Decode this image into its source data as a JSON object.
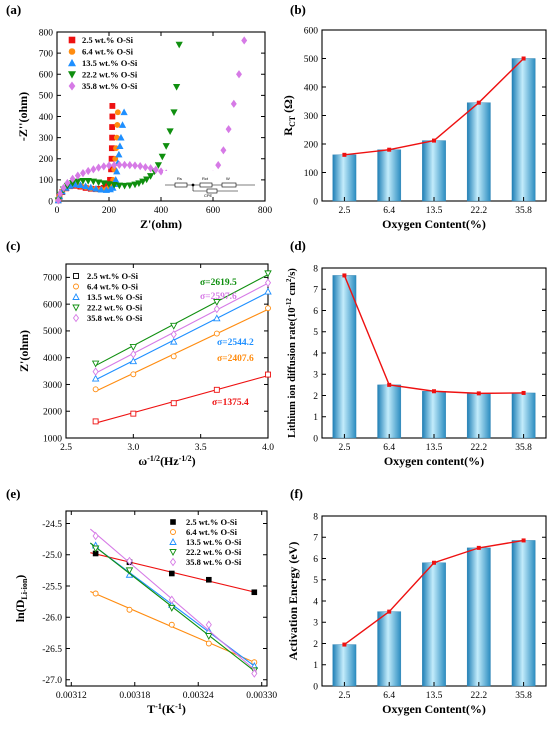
{
  "colors": {
    "s25": "#ee1111",
    "s64": "#ff8c10",
    "s135": "#1e8fff",
    "s222": "#0f8f0f",
    "s358": "#d67ae6",
    "bar_dark": "#2b8cc0",
    "bar_light": "#b8e6f8",
    "line": "#ee1111"
  },
  "panels": [
    {
      "label": "(a)",
      "chart_data": {
        "type": "scatter",
        "xlabel": "Z'(ohm)",
        "ylabel": "-Z''(ohm)",
        "xlim": [
          0,
          800
        ],
        "ylim": [
          0,
          800
        ],
        "xticks": [
          0,
          200,
          400,
          600,
          800
        ],
        "yticks": [
          0,
          100,
          200,
          300,
          400,
          500,
          600,
          700,
          800
        ],
        "legend_position": "top-left",
        "inset_labels": [
          "Rs",
          "Rct",
          "CPE",
          "W"
        ],
        "series": [
          {
            "name": "2.5 wt.% O-Si",
            "marker": "square",
            "color_key": "s25",
            "x": [
              5,
              10,
              20,
              35,
              50,
              70,
              90,
              110,
              130,
              150,
              165,
              180,
              190,
              198,
              204,
              208,
              210,
              211,
              212,
              212,
              213,
              213
            ],
            "y": [
              3,
              20,
              42,
              60,
              70,
              72,
              68,
              62,
              58,
              56,
              58,
              62,
              68,
              80,
              100,
              150,
              200,
              250,
              300,
              350,
              400,
              450
            ]
          },
          {
            "name": "6.4 wt.% O-Si",
            "marker": "circle",
            "color_key": "s64",
            "x": [
              5,
              10,
              20,
              35,
              50,
              70,
              90,
              110,
              130,
              150,
              170,
              190,
              200,
              210,
              216,
              220,
              224,
              227,
              230,
              232,
              234
            ],
            "y": [
              3,
              22,
              45,
              62,
              72,
              76,
              72,
              66,
              60,
              56,
              55,
              56,
              62,
              75,
              100,
              150,
              200,
              250,
              300,
              360,
              420
            ]
          },
          {
            "name": "13.5 wt.% O-Si",
            "marker": "triangle-up",
            "color_key": "s135",
            "x": [
              5,
              10,
              20,
              35,
              50,
              70,
              90,
              110,
              130,
              150,
              170,
              190,
              205,
              215,
              222,
              226,
              230,
              234,
              238,
              242,
              246,
              252,
              258
            ],
            "y": [
              3,
              22,
              45,
              62,
              72,
              78,
              75,
              70,
              64,
              58,
              54,
              52,
              55,
              62,
              80,
              100,
              140,
              180,
              220,
              260,
              300,
              360,
              420
            ]
          },
          {
            "name": "22.2 wt.% O-Si",
            "marker": "triangle-down",
            "color_key": "s222",
            "x": [
              5,
              12,
              25,
              40,
              60,
              80,
              100,
              120,
              140,
              160,
              180,
              200,
              220,
              240,
              260,
              280,
              300,
              315,
              330,
              345,
              360,
              375,
              390,
              405,
              420,
              435,
              450,
              460,
              470
            ],
            "y": [
              3,
              30,
              55,
              72,
              85,
              92,
              95,
              95,
              92,
              88,
              84,
              80,
              76,
              73,
              72,
              74,
              78,
              84,
              92,
              102,
              118,
              140,
              170,
              210,
              260,
              330,
              420,
              540,
              740
            ]
          },
          {
            "name": "35.8 wt.% O-Si",
            "marker": "diamond",
            "color_key": "s358",
            "x": [
              5,
              12,
              25,
              40,
              60,
              80,
              100,
              120,
              140,
              160,
              180,
              200,
              220,
              240,
              260,
              280,
              300,
              320,
              340,
              360,
              380,
              400,
              420,
              440,
              460,
              480,
              500,
              520,
              540,
              560,
              580,
              600,
              620,
              640,
              660,
              680,
              700,
              720
            ],
            "y": [
              3,
              35,
              62,
              85,
              105,
              120,
              132,
              142,
              150,
              158,
              164,
              168,
              170,
              171,
              171,
              170,
              168,
              165,
              160,
              155,
              148,
              140,
              130,
              120,
              108,
              98,
              88,
              80,
              76,
              80,
              95,
              125,
              170,
              240,
              340,
              460,
              600,
              760
            ]
          }
        ]
      }
    },
    {
      "label": "(b)",
      "chart_data": {
        "type": "bar",
        "categories": [
          "2.5",
          "6.4",
          "13.5",
          "22.2",
          "35.8"
        ],
        "values": [
          162,
          180,
          212,
          345,
          500
        ],
        "xlabel": "Oxygen Content(%)",
        "ylabel": "R_CT (Ω)",
        "ylim": [
          0,
          600
        ],
        "yticks": [
          0,
          100,
          200,
          300,
          400,
          500,
          600
        ]
      }
    },
    {
      "label": "(c)",
      "chart_data": {
        "type": "scatter",
        "xlabel": "ω^-1/2(Hz^-1/2)",
        "ylabel": "Z'(ohm)",
        "xlim": [
          2.5,
          4.0
        ],
        "ylim": [
          1000,
          7500
        ],
        "xticks": [
          2.5,
          3.0,
          3.5,
          4.0
        ],
        "yticks": [
          1000,
          2000,
          3000,
          4000,
          5000,
          6000,
          7000
        ],
        "legend_position": "top-left",
        "x": [
          2.72,
          3.0,
          3.3,
          3.62,
          4.0
        ],
        "series": [
          {
            "name": "2.5 wt.% O-Si",
            "marker": "square",
            "color_key": "s25",
            "values": [
              1620,
              1910,
              2300,
              2800,
              3370
            ],
            "sigma": "σ=1375.4"
          },
          {
            "name": "6.4 wt.% O-Si",
            "marker": "circle",
            "color_key": "s64",
            "values": [
              2820,
              3380,
              4050,
              4900,
              5850
            ],
            "sigma": "σ=2407.6"
          },
          {
            "name": "13.5 wt.% O-Si",
            "marker": "triangle-up",
            "color_key": "s135",
            "values": [
              3220,
              3870,
              4600,
              5470,
              6470
            ],
            "sigma": "σ=2544.2"
          },
          {
            "name": "22.2 wt.% O-Si",
            "marker": "triangle-down",
            "color_key": "s222",
            "values": [
              3780,
              4400,
              5190,
              6080,
              7150
            ],
            "sigma": "σ=2619.5"
          },
          {
            "name": "35.8 wt.% O-Si",
            "marker": "diamond",
            "color_key": "s358",
            "values": [
              3480,
              4130,
              4870,
              5820,
              6800
            ],
            "sigma": "σ=2597.6"
          }
        ]
      }
    },
    {
      "label": "(d)",
      "chart_data": {
        "type": "bar",
        "categories": [
          "2.5",
          "6.4",
          "13.5",
          "22.2",
          "35.8"
        ],
        "values": [
          7.65,
          2.5,
          2.2,
          2.1,
          2.12
        ],
        "xlabel": "Oxygen content(%)",
        "ylabel": "Lithium ion diffusion rate(10^-12 cm^2/s)",
        "ylim": [
          0,
          8
        ],
        "yticks": [
          0,
          1,
          2,
          3,
          4,
          5,
          6,
          7,
          8
        ]
      }
    },
    {
      "label": "(e)",
      "chart_data": {
        "type": "scatter",
        "xlabel": "T^-1(K^-1)",
        "ylabel": "ln(D_Li-ion)",
        "xlim": [
          0.003115,
          0.003305
        ],
        "ylim": [
          -27.1,
          -24.3
        ],
        "xticks": [
          "0.00312",
          "0.00318",
          "0.00324",
          "0.00330"
        ],
        "yticks": [
          "-24.5",
          "-25.0",
          "-25.5",
          "-26.0",
          "-26.5",
          "-27.0"
        ],
        "legend_position": "top-right",
        "x": [
          0.003143,
          0.003175,
          0.003215,
          0.00325,
          0.003293
        ],
        "series": [
          {
            "name": "2.5 wt.% O-Si",
            "marker": "square",
            "color_key": "s25",
            "values": [
              -24.98,
              -25.12,
              -25.3,
              -25.4,
              -25.6
            ]
          },
          {
            "name": "6.4 wt.% O-Si",
            "marker": "circle",
            "color_key": "s64",
            "values": [
              -25.62,
              -25.88,
              -26.12,
              -26.42,
              -26.72
            ]
          },
          {
            "name": "13.5 wt.% O-Si",
            "marker": "triangle-up",
            "color_key": "s135",
            "values": [
              -24.85,
              -25.32,
              -25.8,
              -26.22,
              -26.78
            ]
          },
          {
            "name": "22.2 wt.% O-Si",
            "marker": "triangle-down",
            "color_key": "s222",
            "values": [
              -24.9,
              -25.25,
              -25.85,
              -26.3,
              -26.85
            ]
          },
          {
            "name": "35.8 wt.% O-Si",
            "marker": "diamond",
            "color_key": "s358",
            "values": [
              -24.7,
              -25.1,
              -25.72,
              -26.12,
              -26.9
            ]
          }
        ]
      }
    },
    {
      "label": "(f)",
      "chart_data": {
        "type": "bar",
        "categories": [
          "2.5",
          "6.4",
          "13.5",
          "22.2",
          "35.8"
        ],
        "values": [
          1.95,
          3.5,
          5.8,
          6.5,
          6.85
        ],
        "xlabel": "Oxygen Content(%)",
        "ylabel": "Activation Energy (eV)",
        "ylim": [
          0,
          8
        ],
        "yticks": [
          0,
          1,
          2,
          3,
          4,
          5,
          6,
          7,
          8
        ]
      }
    }
  ]
}
